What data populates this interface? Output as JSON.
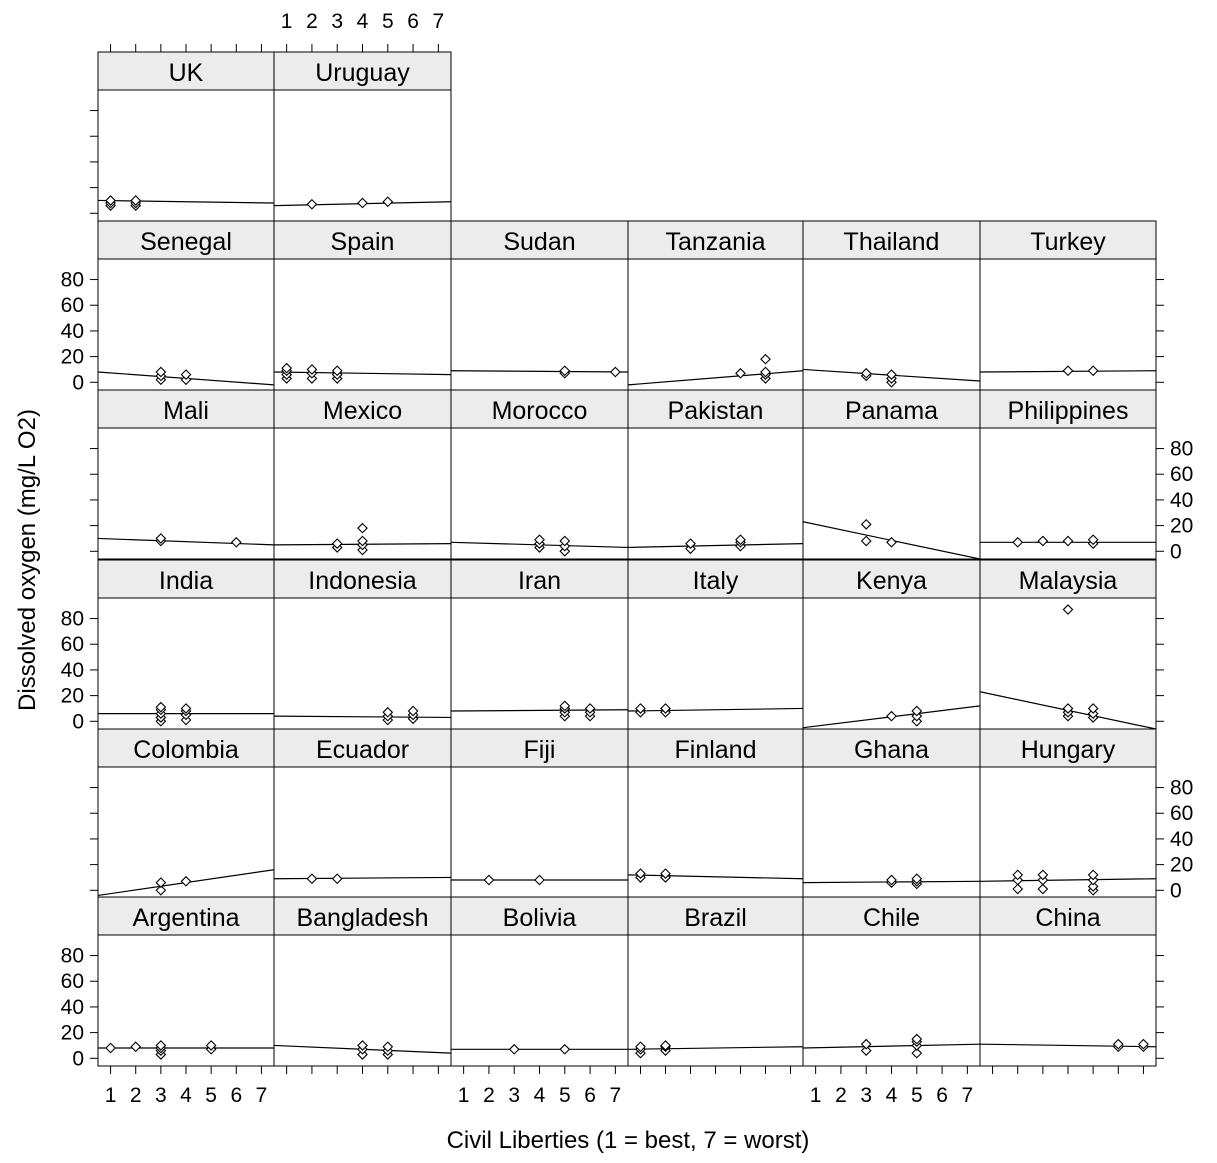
{
  "chart_data": {
    "type": "scatter",
    "layout": "trellis",
    "xlabel": "Civil Liberties (1 = best, 7 = worst)",
    "ylabel": "Dissolved oxygen (mg/L O2)",
    "xlim": [
      0.5,
      7.5
    ],
    "ylim": [
      -6,
      96
    ],
    "x_ticks": [
      1,
      2,
      3,
      4,
      5,
      6,
      7
    ],
    "y_ticks": [
      0,
      20,
      40,
      60,
      80
    ],
    "panels": [
      {
        "name": "UK",
        "points": [
          [
            1,
            6
          ],
          [
            1,
            8
          ],
          [
            1,
            10
          ],
          [
            2,
            6
          ],
          [
            2,
            8
          ],
          [
            2,
            10
          ]
        ],
        "fit": [
          [
            0.5,
            10
          ],
          [
            7.5,
            8
          ]
        ]
      },
      {
        "name": "Uruguay",
        "points": [
          [
            2,
            7
          ],
          [
            4,
            8
          ],
          [
            5,
            9
          ]
        ],
        "fit": [
          [
            0.5,
            6
          ],
          [
            7.5,
            9
          ]
        ]
      },
      {
        "name": "Senegal",
        "points": [
          [
            3,
            2
          ],
          [
            3,
            5
          ],
          [
            3,
            8
          ],
          [
            4,
            2
          ],
          [
            4,
            6
          ]
        ],
        "fit": [
          [
            0.5,
            8
          ],
          [
            7.5,
            -2
          ]
        ]
      },
      {
        "name": "Spain",
        "points": [
          [
            1,
            3
          ],
          [
            1,
            6
          ],
          [
            1,
            9
          ],
          [
            1,
            11
          ],
          [
            2,
            3
          ],
          [
            2,
            7
          ],
          [
            2,
            10
          ],
          [
            3,
            3
          ],
          [
            3,
            6
          ],
          [
            3,
            9
          ]
        ],
        "fit": [
          [
            0.5,
            8
          ],
          [
            7.5,
            6
          ]
        ]
      },
      {
        "name": "Sudan",
        "points": [
          [
            5,
            7
          ],
          [
            5,
            9
          ],
          [
            7,
            8
          ]
        ],
        "fit": [
          [
            0.5,
            9
          ],
          [
            7.5,
            8
          ]
        ]
      },
      {
        "name": "Tanzania",
        "points": [
          [
            5,
            7
          ],
          [
            6,
            3
          ],
          [
            6,
            6
          ],
          [
            6,
            8
          ],
          [
            6,
            18
          ]
        ],
        "fit": [
          [
            0.5,
            -2
          ],
          [
            7.5,
            9
          ]
        ]
      },
      {
        "name": "Thailand",
        "points": [
          [
            3,
            5
          ],
          [
            3,
            7
          ],
          [
            4,
            0
          ],
          [
            4,
            3
          ],
          [
            4,
            6
          ]
        ],
        "fit": [
          [
            0.5,
            10
          ],
          [
            7.5,
            1
          ]
        ]
      },
      {
        "name": "Turkey",
        "points": [
          [
            4,
            9
          ],
          [
            5,
            9
          ]
        ],
        "fit": [
          [
            0.5,
            8
          ],
          [
            7.5,
            9
          ]
        ]
      },
      {
        "name": "Mali",
        "points": [
          [
            3,
            8
          ],
          [
            3,
            10
          ],
          [
            6,
            7
          ]
        ],
        "fit": [
          [
            0.5,
            10
          ],
          [
            7.5,
            5
          ]
        ]
      },
      {
        "name": "Mexico",
        "points": [
          [
            3,
            3
          ],
          [
            3,
            6
          ],
          [
            4,
            1
          ],
          [
            4,
            5
          ],
          [
            4,
            8
          ],
          [
            4,
            18
          ]
        ],
        "fit": [
          [
            0.5,
            5
          ],
          [
            7.5,
            6
          ]
        ]
      },
      {
        "name": "Morocco",
        "points": [
          [
            4,
            3
          ],
          [
            4,
            6
          ],
          [
            4,
            9
          ],
          [
            5,
            0
          ],
          [
            5,
            4
          ],
          [
            5,
            8
          ]
        ],
        "fit": [
          [
            0.5,
            7
          ],
          [
            7.5,
            3
          ]
        ]
      },
      {
        "name": "Pakistan",
        "points": [
          [
            3,
            2
          ],
          [
            3,
            6
          ],
          [
            5,
            4
          ],
          [
            5,
            7
          ],
          [
            5,
            9
          ]
        ],
        "fit": [
          [
            0.5,
            3
          ],
          [
            7.5,
            6
          ]
        ]
      },
      {
        "name": "Panama",
        "points": [
          [
            3,
            8
          ],
          [
            3,
            21
          ],
          [
            4,
            7
          ]
        ],
        "fit": [
          [
            0.5,
            23
          ],
          [
            7.5,
            -6
          ]
        ]
      },
      {
        "name": "Philippines",
        "points": [
          [
            2,
            7
          ],
          [
            3,
            8
          ],
          [
            4,
            8
          ],
          [
            5,
            6
          ],
          [
            5,
            9
          ]
        ],
        "fit": [
          [
            0.5,
            7
          ],
          [
            7.5,
            7
          ]
        ]
      },
      {
        "name": "India",
        "points": [
          [
            3,
            0
          ],
          [
            3,
            3
          ],
          [
            3,
            6
          ],
          [
            3,
            9
          ],
          [
            3,
            11
          ],
          [
            4,
            1
          ],
          [
            4,
            5
          ],
          [
            4,
            8
          ],
          [
            4,
            10
          ]
        ],
        "fit": [
          [
            0.5,
            6
          ],
          [
            7.5,
            6
          ]
        ]
      },
      {
        "name": "Indonesia",
        "points": [
          [
            5,
            1
          ],
          [
            5,
            4
          ],
          [
            5,
            7
          ],
          [
            6,
            2
          ],
          [
            6,
            5
          ],
          [
            6,
            8
          ]
        ],
        "fit": [
          [
            0.5,
            4
          ],
          [
            7.5,
            3
          ]
        ]
      },
      {
        "name": "Iran",
        "points": [
          [
            5,
            4
          ],
          [
            5,
            7
          ],
          [
            5,
            10
          ],
          [
            5,
            12
          ],
          [
            6,
            4
          ],
          [
            6,
            7
          ],
          [
            6,
            10
          ]
        ],
        "fit": [
          [
            0.5,
            8
          ],
          [
            7.5,
            9
          ]
        ]
      },
      {
        "name": "Italy",
        "points": [
          [
            1,
            7
          ],
          [
            1,
            10
          ],
          [
            2,
            7
          ],
          [
            2,
            10
          ]
        ],
        "fit": [
          [
            0.5,
            8
          ],
          [
            7.5,
            10
          ]
        ]
      },
      {
        "name": "Kenya",
        "points": [
          [
            4,
            4
          ],
          [
            5,
            0
          ],
          [
            5,
            4
          ],
          [
            5,
            8
          ]
        ],
        "fit": [
          [
            0.5,
            -5
          ],
          [
            7.5,
            12
          ]
        ]
      },
      {
        "name": "Malaysia",
        "points": [
          [
            4,
            87
          ],
          [
            4,
            4
          ],
          [
            4,
            7
          ],
          [
            4,
            10
          ],
          [
            5,
            3
          ],
          [
            5,
            6
          ],
          [
            5,
            10
          ]
        ],
        "fit": [
          [
            0.5,
            23
          ],
          [
            7.5,
            -6
          ]
        ]
      },
      {
        "name": "Colombia",
        "points": [
          [
            3,
            0
          ],
          [
            3,
            6
          ],
          [
            4,
            7
          ]
        ],
        "fit": [
          [
            0.5,
            -4
          ],
          [
            7.5,
            16
          ]
        ]
      },
      {
        "name": "Ecuador",
        "points": [
          [
            2,
            9
          ],
          [
            3,
            9
          ]
        ],
        "fit": [
          [
            0.5,
            9
          ],
          [
            7.5,
            10
          ]
        ]
      },
      {
        "name": "Fiji",
        "points": [
          [
            2,
            8
          ],
          [
            4,
            8
          ]
        ],
        "fit": [
          [
            0.5,
            8
          ],
          [
            7.5,
            8
          ]
        ]
      },
      {
        "name": "Finland",
        "points": [
          [
            1,
            10
          ],
          [
            1,
            13
          ],
          [
            2,
            10
          ],
          [
            2,
            13
          ]
        ],
        "fit": [
          [
            0.5,
            12
          ],
          [
            7.5,
            9
          ]
        ]
      },
      {
        "name": "Ghana",
        "points": [
          [
            4,
            6
          ],
          [
            4,
            8
          ],
          [
            5,
            5
          ],
          [
            5,
            7
          ],
          [
            5,
            9
          ]
        ],
        "fit": [
          [
            0.5,
            6
          ],
          [
            7.5,
            7
          ]
        ]
      },
      {
        "name": "Hungary",
        "points": [
          [
            2,
            1
          ],
          [
            2,
            8
          ],
          [
            2,
            12
          ],
          [
            3,
            1
          ],
          [
            3,
            8
          ],
          [
            3,
            12
          ],
          [
            5,
            0
          ],
          [
            5,
            3
          ],
          [
            5,
            8
          ],
          [
            5,
            12
          ]
        ],
        "fit": [
          [
            0.5,
            7
          ],
          [
            7.5,
            9
          ]
        ]
      },
      {
        "name": "Argentina",
        "points": [
          [
            1,
            8
          ],
          [
            2,
            9
          ],
          [
            3,
            3
          ],
          [
            3,
            6
          ],
          [
            3,
            8
          ],
          [
            3,
            10
          ],
          [
            5,
            7
          ],
          [
            5,
            10
          ]
        ],
        "fit": [
          [
            0.5,
            8
          ],
          [
            7.5,
            8
          ]
        ]
      },
      {
        "name": "Bangladesh",
        "points": [
          [
            4,
            3
          ],
          [
            4,
            7
          ],
          [
            4,
            10
          ],
          [
            5,
            3
          ],
          [
            5,
            6
          ],
          [
            5,
            9
          ]
        ],
        "fit": [
          [
            0.5,
            10
          ],
          [
            7.5,
            4
          ]
        ]
      },
      {
        "name": "Bolivia",
        "points": [
          [
            3,
            7
          ],
          [
            5,
            7
          ]
        ],
        "fit": [
          [
            0.5,
            7
          ],
          [
            7.5,
            7
          ]
        ]
      },
      {
        "name": "Brazil",
        "points": [
          [
            1,
            4
          ],
          [
            1,
            7
          ],
          [
            1,
            9
          ],
          [
            2,
            6
          ],
          [
            2,
            9
          ],
          [
            2,
            10
          ]
        ],
        "fit": [
          [
            0.5,
            7
          ],
          [
            7.5,
            9
          ]
        ]
      },
      {
        "name": "Chile",
        "points": [
          [
            3,
            6
          ],
          [
            3,
            11
          ],
          [
            5,
            4
          ],
          [
            5,
            10
          ],
          [
            5,
            13
          ],
          [
            5,
            15
          ]
        ],
        "fit": [
          [
            0.5,
            8
          ],
          [
            7.5,
            11
          ]
        ]
      },
      {
        "name": "China",
        "points": [
          [
            6,
            9
          ],
          [
            6,
            11
          ],
          [
            7,
            9
          ],
          [
            7,
            11
          ]
        ],
        "fit": [
          [
            0.5,
            11
          ],
          [
            7.5,
            9
          ]
        ]
      }
    ]
  }
}
